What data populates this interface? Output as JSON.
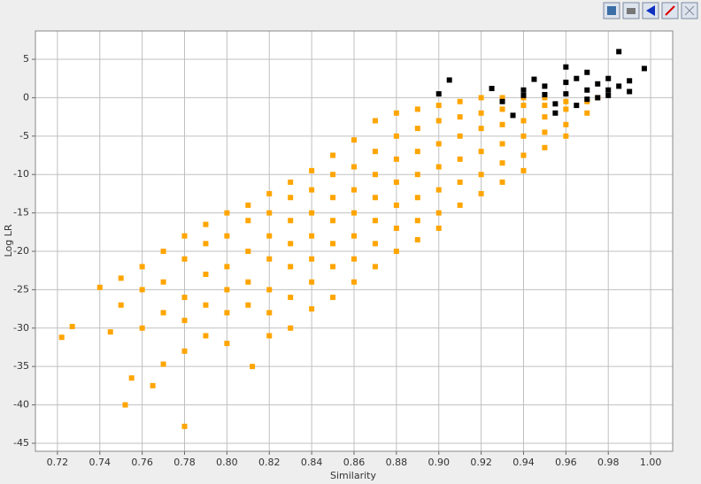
{
  "chart_data": {
    "type": "scatter",
    "xlabel": "Similarity",
    "ylabel": "Log LR",
    "xlim": [
      0.7096,
      1.0104
    ],
    "ylim": [
      -46.04,
      8.69
    ],
    "xticks": [
      0.72,
      0.74,
      0.76,
      0.78,
      {
        "value": 0.8,
        "label": "0.80"
      },
      0.82,
      0.84,
      0.86,
      0.88,
      {
        "value": 0.9,
        "label": "0.90"
      },
      0.92,
      0.94,
      0.96,
      0.98,
      {
        "value": 1.0,
        "label": "1.00"
      }
    ],
    "yticks": [
      5,
      0,
      -5,
      -10,
      -15,
      -20,
      -25,
      -30,
      -35,
      -40,
      -45
    ],
    "grid": true,
    "series": [
      {
        "color": "#ffa500",
        "x": [
          0.722,
          0.727,
          0.74,
          0.745,
          0.75,
          0.75,
          0.752,
          0.755,
          0.76,
          0.76,
          0.76,
          0.765,
          0.77,
          0.77,
          0.77,
          0.77,
          0.78,
          0.78,
          0.78,
          0.78,
          0.78,
          0.78,
          0.79,
          0.79,
          0.79,
          0.79,
          0.79,
          0.8,
          0.8,
          0.8,
          0.8,
          0.8,
          0.8,
          0.81,
          0.81,
          0.81,
          0.81,
          0.81,
          0.812,
          0.82,
          0.82,
          0.82,
          0.82,
          0.82,
          0.82,
          0.82,
          0.83,
          0.83,
          0.83,
          0.83,
          0.83,
          0.83,
          0.83,
          0.84,
          0.84,
          0.84,
          0.84,
          0.84,
          0.84,
          0.84,
          0.85,
          0.85,
          0.85,
          0.85,
          0.85,
          0.85,
          0.85,
          0.86,
          0.86,
          0.86,
          0.86,
          0.86,
          0.86,
          0.86,
          0.87,
          0.87,
          0.87,
          0.87,
          0.87,
          0.87,
          0.87,
          0.88,
          0.88,
          0.88,
          0.88,
          0.88,
          0.88,
          0.88,
          0.89,
          0.89,
          0.89,
          0.89,
          0.89,
          0.89,
          0.89,
          0.9,
          0.9,
          0.9,
          0.9,
          0.9,
          0.9,
          0.9,
          0.91,
          0.91,
          0.91,
          0.91,
          0.91,
          0.91,
          0.92,
          0.92,
          0.92,
          0.92,
          0.92,
          0.92,
          0.93,
          0.93,
          0.93,
          0.93,
          0.93,
          0.93,
          0.94,
          0.94,
          0.94,
          0.94,
          0.94,
          0.94,
          0.95,
          0.95,
          0.95,
          0.95,
          0.95,
          0.96,
          0.96,
          0.96,
          0.96,
          0.97,
          0.97,
          0.975
        ],
        "values": [
          -31.2,
          -29.8,
          -24.7,
          -30.5,
          -23.5,
          -27,
          -40,
          -36.5,
          -22,
          -25,
          -30,
          -37.5,
          -20,
          -24,
          -28,
          -34.7,
          -18,
          -21,
          -26,
          -29,
          -33,
          -42.8,
          -16.5,
          -19,
          -23,
          -27,
          -31,
          -15,
          -18,
          -22,
          -25,
          -28,
          -32,
          -14,
          -16,
          -20,
          -24,
          -27,
          -35,
          -12.5,
          -15,
          -18,
          -21,
          -25,
          -28,
          -31,
          -11,
          -13,
          -16,
          -19,
          -22,
          -26,
          -30,
          -9.5,
          -12,
          -15,
          -18,
          -21,
          -24,
          -27.5,
          -7.5,
          -10,
          -13,
          -16,
          -19,
          -22,
          -26,
          -5.5,
          -9,
          -12,
          -15,
          -18,
          -21,
          -24,
          -3,
          -7,
          -10,
          -13,
          -16,
          -19,
          -22,
          -2,
          -5,
          -8,
          -11,
          -14,
          -17,
          -20,
          -1.5,
          -4,
          -7,
          -10,
          -13,
          -16,
          -18.5,
          -1,
          -3,
          -6,
          -9,
          -12,
          -15,
          -17,
          -0.5,
          -2.5,
          -5,
          -8,
          -11,
          -14,
          0,
          -2,
          -4,
          -7,
          -10,
          -12.5,
          0,
          -1.5,
          -3.5,
          -6,
          -8.5,
          -11,
          0,
          -1,
          -3,
          -5,
          -7.5,
          -9.5,
          0,
          -1,
          -2.5,
          -4.5,
          -6.5,
          -0.5,
          -1.5,
          -3.5,
          -5,
          -0.5,
          -2,
          0
        ]
      },
      {
        "color": "#000000",
        "x": [
          0.905,
          0.9,
          0.925,
          0.93,
          0.935,
          0.94,
          0.945,
          0.95,
          0.955,
          0.955,
          0.96,
          0.96,
          0.965,
          0.965,
          0.97,
          0.97,
          0.975,
          0.975,
          0.98,
          0.98,
          0.985,
          0.985,
          0.99,
          0.99,
          0.997,
          0.94,
          0.95,
          0.96,
          0.97,
          0.98
        ],
        "values": [
          2.3,
          0.5,
          1.2,
          -0.5,
          -2.3,
          0.3,
          2.4,
          1.5,
          -0.8,
          -2,
          4,
          0.5,
          2.5,
          -1,
          3.3,
          1,
          0,
          1.8,
          1,
          2.5,
          6,
          1.5,
          2.2,
          0.8,
          3.8,
          1,
          0.4,
          2,
          -0.2,
          0.3
        ]
      }
    ]
  }
}
